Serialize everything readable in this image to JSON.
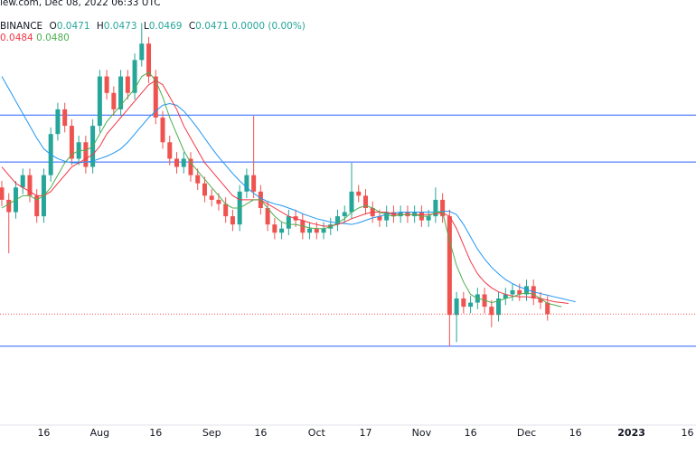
{
  "header": {
    "source": "iew.com, Dec 08, 2022 06:33 UTC",
    "exchange": "BINANCE",
    "ohlc": [
      {
        "label": "O",
        "value": "0.0471"
      },
      {
        "label": "H",
        "value": "0.0473"
      },
      {
        "label": "L",
        "value": "0.0469"
      },
      {
        "label": "C",
        "value": "0.0471"
      }
    ],
    "change": "0.0000 (0.00%)",
    "ma_values": [
      "0.0484",
      "0.0480"
    ]
  },
  "chart_data": {
    "type": "candlestick",
    "categories": [
      null,
      null,
      null,
      null,
      null,
      null,
      "16",
      null,
      null,
      null,
      null,
      null,
      null,
      null,
      "Aug",
      null,
      null,
      null,
      null,
      null,
      null,
      null,
      "16",
      null,
      null,
      null,
      null,
      null,
      null,
      null,
      "Sep",
      null,
      null,
      null,
      null,
      null,
      null,
      "16",
      null,
      null,
      null,
      null,
      null,
      null,
      null,
      "Oct",
      null,
      null,
      null,
      null,
      null,
      null,
      "17",
      null,
      null,
      null,
      null,
      null,
      null,
      null,
      "Nov",
      null,
      null,
      null,
      null,
      null,
      null,
      "16",
      null,
      null,
      null,
      null,
      null,
      null,
      null,
      "Dec",
      null,
      null,
      null,
      null,
      null,
      null,
      "16",
      null,
      null,
      null,
      null,
      null,
      null,
      null,
      "2023",
      null,
      null,
      null,
      null,
      null,
      null,
      null,
      "16"
    ],
    "open": [
      0.0625,
      0.061,
      0.0595,
      0.0625,
      0.064,
      0.0615,
      0.059,
      0.064,
      0.069,
      0.072,
      0.07,
      0.066,
      0.068,
      0.065,
      0.07,
      0.076,
      0.074,
      0.072,
      0.076,
      0.074,
      0.078,
      0.08,
      0.076,
      0.071,
      0.068,
      0.066,
      0.065,
      0.066,
      0.064,
      0.063,
      0.0615,
      0.061,
      0.0605,
      0.059,
      0.058,
      0.062,
      0.064,
      0.062,
      0.06,
      0.058,
      0.057,
      0.0575,
      0.059,
      0.0585,
      0.057,
      0.0575,
      0.057,
      0.0575,
      0.058,
      0.059,
      0.0595,
      0.062,
      0.0615,
      0.06,
      0.059,
      0.0585,
      0.0595,
      0.059,
      0.0595,
      0.059,
      0.0595,
      0.0585,
      0.059,
      0.061,
      0.059,
      0.047,
      0.049,
      0.048,
      0.0485,
      0.0495,
      0.048,
      0.047,
      0.049,
      0.0495,
      0.05,
      0.0495,
      0.0505,
      0.049,
      0.0485,
      null,
      null,
      null,
      null,
      null,
      null,
      null,
      null,
      null,
      null,
      null,
      null,
      null,
      null,
      null,
      null,
      null,
      null,
      null,
      null
    ],
    "high": [
      0.0633,
      0.0618,
      0.0633,
      0.0648,
      0.0648,
      0.0623,
      0.0648,
      0.0698,
      0.0728,
      0.0728,
      0.0708,
      0.0688,
      0.0688,
      0.0708,
      0.0768,
      0.0768,
      0.0748,
      0.0768,
      0.0768,
      0.0788,
      0.0825,
      0.0808,
      0.0768,
      0.0718,
      0.0688,
      0.0668,
      0.0668,
      0.0668,
      0.0648,
      0.0638,
      0.0623,
      0.0618,
      0.0613,
      0.0598,
      0.0628,
      0.0648,
      0.0712,
      0.0628,
      0.0608,
      0.0588,
      0.0583,
      0.0598,
      0.0598,
      0.0593,
      0.0583,
      0.0583,
      0.0583,
      0.0588,
      0.0598,
      0.0603,
      0.0655,
      0.0628,
      0.0623,
      0.0608,
      0.0598,
      0.0603,
      0.0603,
      0.0603,
      0.0603,
      0.0603,
      0.0603,
      0.0598,
      0.0625,
      0.0618,
      0.0598,
      0.0498,
      0.0498,
      0.0493,
      0.0503,
      0.0503,
      0.0488,
      0.0498,
      0.0503,
      0.0508,
      0.0508,
      0.0513,
      0.0513,
      0.0498,
      0.0493,
      null,
      null,
      null,
      null,
      null,
      null,
      null,
      null,
      null,
      null,
      null,
      null,
      null,
      null,
      null,
      null,
      null,
      null,
      null,
      null
    ],
    "low": [
      0.0602,
      0.0545,
      0.0587,
      0.0617,
      0.0607,
      0.0582,
      0.0582,
      0.0632,
      0.0682,
      0.0692,
      0.0652,
      0.0652,
      0.0642,
      0.0642,
      0.0692,
      0.0732,
      0.0712,
      0.0712,
      0.0732,
      0.0732,
      0.0772,
      0.0752,
      0.0702,
      0.0672,
      0.0652,
      0.0642,
      0.0642,
      0.0632,
      0.0622,
      0.0607,
      0.0602,
      0.0597,
      0.0582,
      0.0572,
      0.0572,
      0.0612,
      0.0612,
      0.0592,
      0.0572,
      0.0562,
      0.0562,
      0.0567,
      0.0577,
      0.0562,
      0.0562,
      0.0562,
      0.0562,
      0.0567,
      0.0572,
      0.0582,
      0.0587,
      0.0607,
      0.0592,
      0.0582,
      0.0577,
      0.0577,
      0.0582,
      0.0582,
      0.0582,
      0.0582,
      0.0577,
      0.0577,
      0.0582,
      0.0582,
      0.0432,
      0.0437,
      0.0472,
      0.0472,
      0.0477,
      0.0472,
      0.0455,
      0.0462,
      0.0482,
      0.0487,
      0.0487,
      0.0487,
      0.0482,
      0.0477,
      0.0463,
      null,
      null,
      null,
      null,
      null,
      null,
      null,
      null,
      null,
      null,
      null,
      null,
      null,
      null,
      null,
      null,
      null,
      null,
      null,
      null
    ],
    "close": [
      0.061,
      0.0595,
      0.0625,
      0.064,
      0.0615,
      0.059,
      0.064,
      0.069,
      0.072,
      0.07,
      0.066,
      0.068,
      0.065,
      0.07,
      0.076,
      0.074,
      0.072,
      0.076,
      0.074,
      0.078,
      0.08,
      0.076,
      0.071,
      0.068,
      0.066,
      0.065,
      0.066,
      0.064,
      0.063,
      0.0615,
      0.061,
      0.0605,
      0.059,
      0.058,
      0.062,
      0.064,
      0.062,
      0.06,
      0.058,
      0.057,
      0.0575,
      0.059,
      0.0585,
      0.057,
      0.0575,
      0.057,
      0.0575,
      0.058,
      0.059,
      0.0595,
      0.062,
      0.0615,
      0.06,
      0.059,
      0.0585,
      0.0595,
      0.059,
      0.0595,
      0.059,
      0.0595,
      0.0585,
      0.059,
      0.061,
      0.059,
      0.047,
      0.049,
      0.048,
      0.0485,
      0.0495,
      0.048,
      0.047,
      0.049,
      0.0495,
      0.05,
      0.0495,
      0.0505,
      0.049,
      0.0485,
      0.0471,
      null,
      null,
      null,
      null,
      null,
      null,
      null,
      null,
      null,
      null,
      null,
      null,
      null,
      null,
      null,
      null,
      null,
      null,
      null,
      null
    ],
    "up_color": "#26a69a",
    "down_color": "#ef5350",
    "overlays": [
      {
        "color": "#2196f3",
        "values": [
          0.076,
          0.0745,
          0.073,
          0.0715,
          0.07,
          0.0685,
          0.0672,
          0.0665,
          0.066,
          0.0657,
          0.0655,
          0.0655,
          0.0656,
          0.0657,
          0.066,
          0.0663,
          0.0667,
          0.0672,
          0.068,
          0.069,
          0.07,
          0.071,
          0.0718,
          0.0725,
          0.0727,
          0.0725,
          0.0718,
          0.0708,
          0.0697,
          0.0685,
          0.0673,
          0.0662,
          0.0652,
          0.0642,
          0.0633,
          0.0625,
          0.0618,
          0.0612,
          0.0608,
          0.0605,
          0.0603,
          0.06,
          0.0597,
          0.0593,
          0.059,
          0.0587,
          0.0585,
          0.0583,
          0.0582,
          0.0581,
          0.058,
          0.0582,
          0.0585,
          0.0588,
          0.059,
          0.0592,
          0.0594,
          0.0595,
          0.0595,
          0.0595,
          0.0595,
          0.0595,
          0.0595,
          0.0596,
          0.0596,
          0.0592,
          0.058,
          0.0565,
          0.055,
          0.0538,
          0.0528,
          0.052,
          0.0513,
          0.0508,
          0.0504,
          0.0501,
          0.0498,
          0.0496,
          0.0494,
          0.0492,
          0.049,
          0.0488,
          0.0486,
          null,
          null,
          null,
          null,
          null,
          null,
          null,
          null,
          null,
          null,
          null,
          null,
          null,
          null,
          null,
          null
        ]
      },
      {
        "color": "#f23645",
        "values": [
          0.065,
          0.064,
          0.063,
          0.0625,
          0.062,
          0.0615,
          0.0615,
          0.062,
          0.063,
          0.064,
          0.065,
          0.0655,
          0.066,
          0.0665,
          0.0675,
          0.069,
          0.07,
          0.071,
          0.072,
          0.073,
          0.074,
          0.075,
          0.0755,
          0.075,
          0.0735,
          0.072,
          0.07,
          0.0685,
          0.067,
          0.0655,
          0.0645,
          0.0635,
          0.0625,
          0.0615,
          0.061,
          0.061,
          0.061,
          0.061,
          0.0605,
          0.06,
          0.0595,
          0.059,
          0.0587,
          0.0585,
          0.0582,
          0.058,
          0.0578,
          0.0578,
          0.058,
          0.0583,
          0.0587,
          0.059,
          0.0593,
          0.0595,
          0.0595,
          0.0595,
          0.0593,
          0.0592,
          0.0592,
          0.0592,
          0.0592,
          0.0592,
          0.0593,
          0.0594,
          0.059,
          0.0575,
          0.0555,
          0.0535,
          0.052,
          0.051,
          0.0503,
          0.0498,
          0.0495,
          0.0493,
          0.0492,
          0.0492,
          0.0491,
          0.049,
          0.0488,
          0.0486,
          0.0485,
          0.0484,
          null,
          null,
          null,
          null,
          null,
          null,
          null,
          null,
          null,
          null,
          null,
          null,
          null,
          null,
          null,
          null,
          null
        ]
      },
      {
        "color": "#4caf50",
        "values": [
          0.06,
          0.0605,
          0.061,
          0.0615,
          0.0615,
          0.061,
          0.0615,
          0.0625,
          0.064,
          0.0655,
          0.0665,
          0.067,
          0.067,
          0.0675,
          0.069,
          0.0705,
          0.0715,
          0.0725,
          0.0735,
          0.0745,
          0.076,
          0.0765,
          0.0755,
          0.0735,
          0.071,
          0.069,
          0.067,
          0.0655,
          0.0645,
          0.0635,
          0.0625,
          0.0615,
          0.0605,
          0.06,
          0.06,
          0.0605,
          0.061,
          0.061,
          0.06,
          0.059,
          0.0583,
          0.058,
          0.058,
          0.0578,
          0.0576,
          0.0575,
          0.0575,
          0.0577,
          0.0582,
          0.0587,
          0.0595,
          0.06,
          0.0603,
          0.06,
          0.0595,
          0.0592,
          0.059,
          0.0592,
          0.0592,
          0.0592,
          0.059,
          0.059,
          0.0595,
          0.0595,
          0.056,
          0.053,
          0.051,
          0.0495,
          0.049,
          0.0488,
          0.0485,
          0.0487,
          0.049,
          0.0492,
          0.0495,
          0.0497,
          0.0495,
          0.049,
          0.0484,
          0.0482,
          0.048,
          null,
          null,
          null,
          null,
          null,
          null,
          null,
          null,
          null,
          null,
          null,
          null,
          null,
          null,
          null,
          null,
          null,
          null
        ]
      }
    ],
    "hlines": [
      0.0713,
      0.0656,
      0.0432
    ],
    "hline_color": "#2962ff",
    "ylim": [
      0.0336,
      0.0853
    ]
  }
}
